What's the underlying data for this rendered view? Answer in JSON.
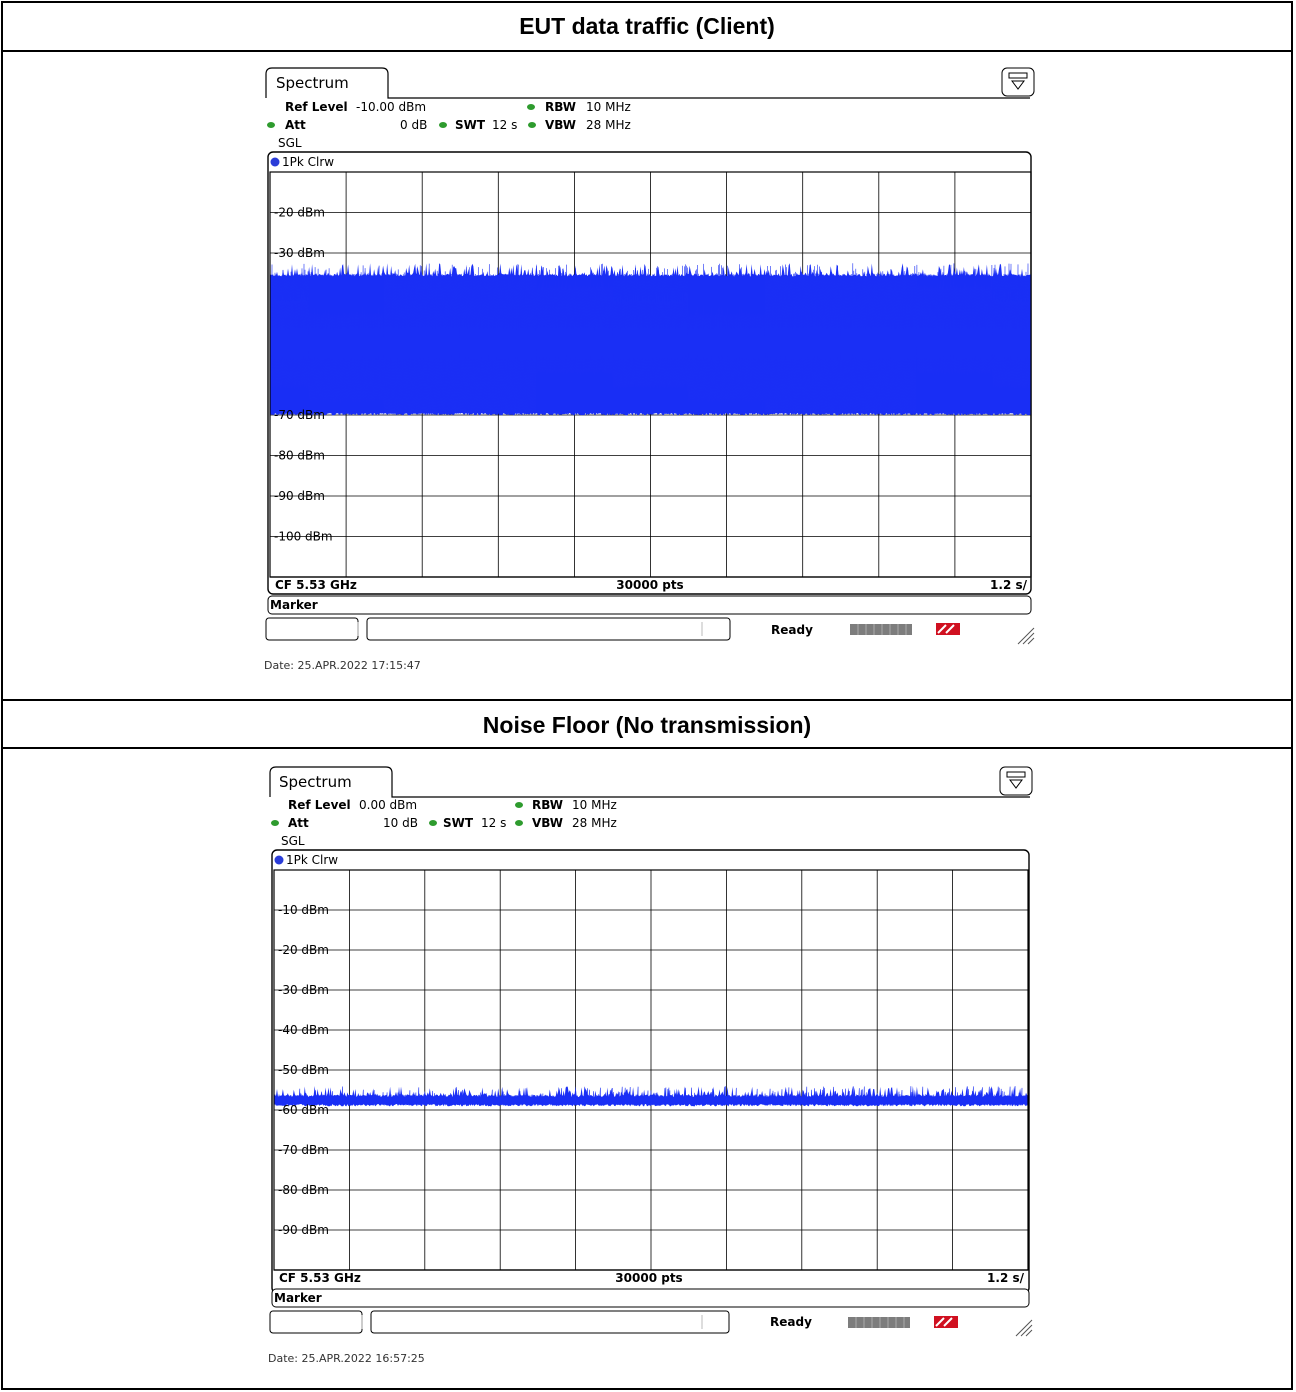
{
  "sections": [
    {
      "heading": "EUT data traffic (Client)",
      "instrument": {
        "tab_label": "Spectrum",
        "ref_level_label": "Ref Level",
        "ref_level_value": "-10.00 dBm",
        "att_label": "Att",
        "att_value": "0 dB",
        "swt_label": "SWT",
        "swt_value": "12 s",
        "rbw_label": "RBW",
        "rbw_value": "10 MHz",
        "vbw_label": "VBW",
        "vbw_value": "28 MHz",
        "mode": "SGL",
        "trace_label": "1Pk Clrw",
        "footer_left": "CF 5.53 GHz",
        "footer_center": "30000 pts",
        "footer_right": "1.2 s/",
        "marker_label": "Marker",
        "status": "Ready",
        "date_line": "Date: 25.APR.2022  17:15:47"
      },
      "chart_data": {
        "type": "line",
        "title": "",
        "xlabel": "",
        "ylabel": "",
        "x_divisions": 10,
        "y_divisions": 10,
        "ylim": [
          -110,
          -10
        ],
        "y_ticks": [
          {
            "value": -20,
            "label": "-20 dBm"
          },
          {
            "value": -30,
            "label": "-30 dBm"
          },
          {
            "value": -70,
            "label": "-70 dBm"
          },
          {
            "value": -80,
            "label": "-80 dBm"
          },
          {
            "value": -90,
            "label": "-90 dBm"
          },
          {
            "value": -100,
            "label": "-100 dBm"
          }
        ],
        "grid": true,
        "series": [
          {
            "color": "#1a2ff5",
            "band_min_dbm": -69.5,
            "band_max_dbm": -35.5,
            "peak_max_dbm": -32.5
          }
        ]
      }
    },
    {
      "heading": "Noise Floor (No transmission)",
      "instrument": {
        "tab_label": "Spectrum",
        "ref_level_label": "Ref Level",
        "ref_level_value": "0.00 dBm",
        "att_label": "Att",
        "att_value": "10 dB",
        "swt_label": "SWT",
        "swt_value": "12 s",
        "rbw_label": "RBW",
        "rbw_value": "10 MHz",
        "vbw_label": "VBW",
        "vbw_value": "28 MHz",
        "mode": "SGL",
        "trace_label": "1Pk Clrw",
        "footer_left": "CF 5.53 GHz",
        "footer_center": "30000 pts",
        "footer_right": "1.2 s/",
        "marker_label": "Marker",
        "status": "Ready",
        "date_line": "Date: 25.APR.2022  16:57:25"
      },
      "chart_data": {
        "type": "line",
        "title": "",
        "xlabel": "",
        "ylabel": "",
        "x_divisions": 10,
        "y_divisions": 10,
        "ylim": [
          -100,
          0
        ],
        "y_ticks": [
          {
            "value": -10,
            "label": "-10 dBm"
          },
          {
            "value": -20,
            "label": "-20 dBm"
          },
          {
            "value": -30,
            "label": "-30 dBm"
          },
          {
            "value": -40,
            "label": "-40 dBm"
          },
          {
            "value": -50,
            "label": "-50 dBm"
          },
          {
            "value": -60,
            "label": "-60 dBm"
          },
          {
            "value": -70,
            "label": "-70 dBm"
          },
          {
            "value": -80,
            "label": "-80 dBm"
          },
          {
            "value": -90,
            "label": "-90 dBm"
          }
        ],
        "grid": true,
        "series": [
          {
            "color": "#1a2ff5",
            "band_min_dbm": -58.5,
            "band_max_dbm": -56.5,
            "peak_max_dbm": -54.0
          }
        ]
      }
    }
  ]
}
